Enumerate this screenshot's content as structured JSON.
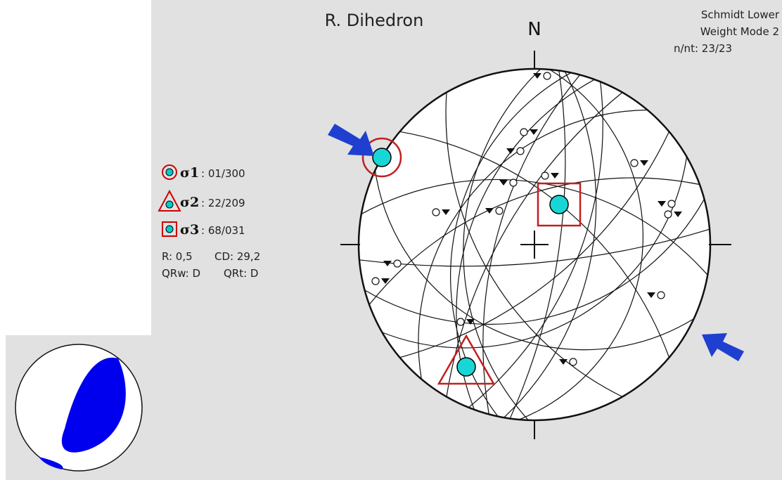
{
  "header": {
    "title": "R. Dihedron",
    "north": "N",
    "projection": "Schmidt Lower",
    "weight_mode": "Weight Mode 2",
    "count": "n/nt: 23/23"
  },
  "legend": [
    {
      "symbol": "σ1",
      "value": ": 01/300"
    },
    {
      "symbol": "σ2",
      "value": ": 22/209"
    },
    {
      "symbol": "σ3",
      "value": ": 68/031"
    }
  ],
  "stats": {
    "r": "R: 0,5",
    "cd": "CD: 29,2",
    "qrw": "QRw: D",
    "qrt": "QRt: D"
  }
}
